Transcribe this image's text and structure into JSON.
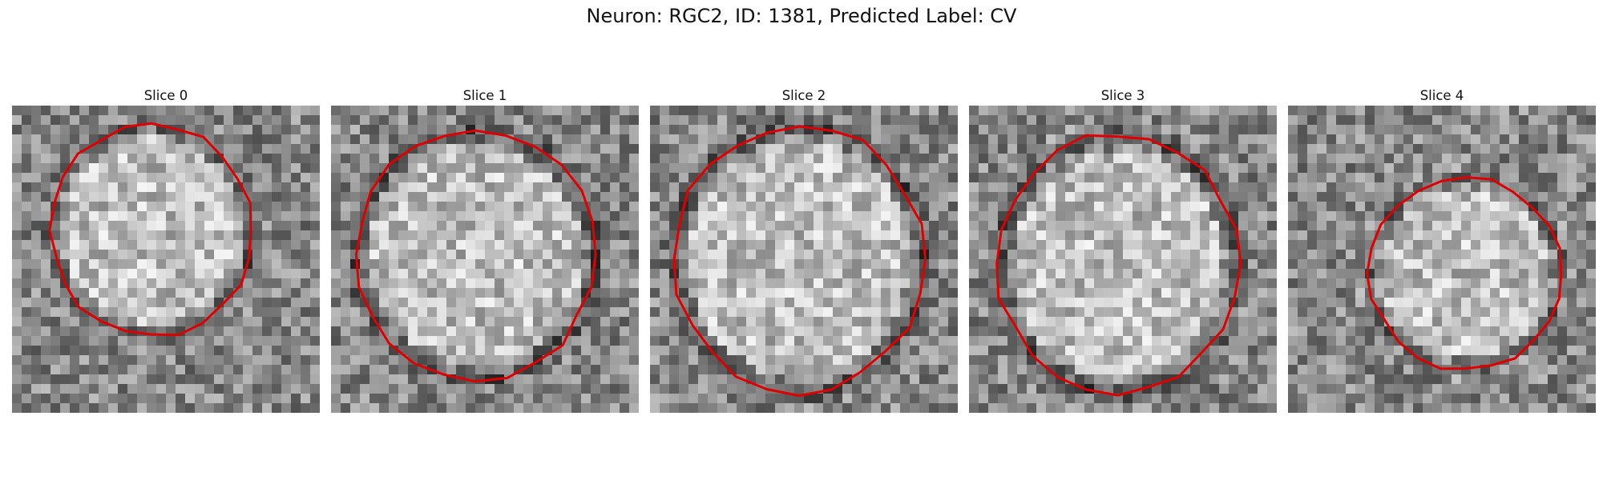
{
  "figure": {
    "title": "Neuron: RGC2, ID: 1381, Predicted Label: CV",
    "outline_color": "#e00000"
  },
  "slices": [
    {
      "title": "Slice 0",
      "grid": 32,
      "seed": 11,
      "center": [
        14.5,
        13.0
      ],
      "radii": [
        10.5,
        11.0
      ],
      "ring_strength": 0.9
    },
    {
      "title": "Slice 1",
      "grid": 32,
      "seed": 23,
      "center": [
        15.0,
        15.5
      ],
      "radii": [
        12.5,
        13.0
      ],
      "ring_strength": 1.0
    },
    {
      "title": "Slice 2",
      "grid": 32,
      "seed": 37,
      "center": [
        15.5,
        16.0
      ],
      "radii": [
        13.0,
        14.0
      ],
      "ring_strength": 1.0
    },
    {
      "title": "Slice 3",
      "grid": 32,
      "seed": 51,
      "center": [
        15.5,
        16.5
      ],
      "radii": [
        12.5,
        13.5
      ],
      "ring_strength": 1.0
    },
    {
      "title": "Slice 4",
      "grid": 32,
      "seed": 68,
      "center": [
        18.5,
        17.5
      ],
      "radii": [
        10.0,
        10.0
      ],
      "ring_strength": 0.8
    }
  ]
}
